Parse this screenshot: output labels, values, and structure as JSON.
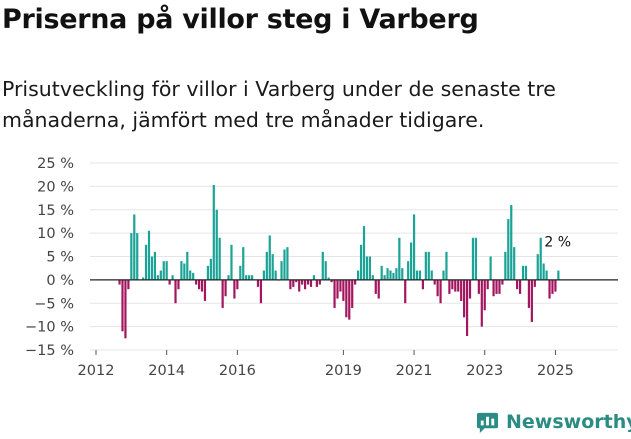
{
  "title": "Priserna på villor steg i Varberg",
  "subtitle": "Prisutveckling för villor i Varberg under de senaste tre månaderna, jämfört med tre månader tidigare.",
  "brand": {
    "name": "Newsworthy",
    "icon": "newsworthy-logo-icon",
    "color": "#2a8c82"
  },
  "colors": {
    "positive": "#1aa396",
    "negative": "#a3155e",
    "zero_line": "#222222",
    "grid": "#e5e5e5"
  },
  "chart_data": {
    "type": "bar",
    "title": "Priserna på villor steg i Varberg",
    "x_start": {
      "year": 2012,
      "month": 9
    },
    "frequency": "monthly",
    "ylim": [
      -15,
      25
    ],
    "yticks": [
      -15,
      -10,
      -5,
      0,
      5,
      10,
      15,
      20,
      25
    ],
    "ytick_labels": [
      "−15 %",
      "−10 %",
      "−5 %",
      "0 %",
      "5 %",
      "10 %",
      "15 %",
      "20 %",
      "25 %"
    ],
    "xticks": [
      2012,
      2014,
      2016,
      2019,
      2021,
      2023,
      2025
    ],
    "xtick_labels": [
      "2012",
      "2014",
      "2016",
      "2019",
      "2021",
      "2023",
      "2025"
    ],
    "annotation": {
      "label": "2 %",
      "value": 2
    },
    "values": [
      -1,
      -11,
      -12.5,
      -2,
      10,
      14,
      10,
      null,
      0.5,
      7.5,
      10.5,
      5,
      6,
      1,
      2,
      4,
      4,
      -1,
      1,
      -5,
      -2,
      4,
      3.5,
      6,
      2,
      1.5,
      -1,
      -2,
      -2.5,
      -4.5,
      3,
      4.5,
      20.3,
      15,
      9,
      -6,
      -3.5,
      1,
      7.5,
      -4,
      -2,
      3,
      7,
      1,
      1,
      1,
      null,
      -1.5,
      -5,
      2,
      6,
      9.5,
      5.5,
      2,
      0,
      4,
      6.5,
      7,
      -2,
      -1.5,
      -0.5,
      -2.5,
      -1,
      -2,
      -1,
      -1.5,
      1,
      -1.5,
      -1,
      6,
      4,
      0.5,
      -0.5,
      -6,
      -4,
      -2.5,
      -4.5,
      -8,
      -8.5,
      -6,
      -1,
      2,
      7.5,
      11.5,
      5,
      5,
      1,
      -3,
      -4,
      3,
      1,
      2.5,
      2,
      1.5,
      2.5,
      9,
      2.5,
      -5,
      4,
      8,
      14,
      2,
      2,
      -2,
      6,
      6,
      2,
      -1,
      -3.5,
      -5,
      2,
      6,
      -3,
      -2,
      -2.5,
      -2.5,
      -4.5,
      -8,
      -12,
      -4,
      9,
      9,
      -3,
      -10,
      -6.5,
      -2,
      5,
      -3.5,
      -3,
      -3,
      -1,
      6,
      13,
      16,
      7,
      -2,
      -3,
      3,
      3,
      -6,
      -9,
      -1.5,
      5.5,
      9,
      3.5,
      2,
      -4,
      -3,
      -2.5,
      2
    ]
  }
}
